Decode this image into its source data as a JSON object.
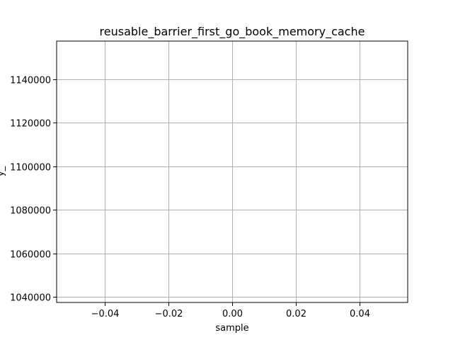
{
  "chart_data": {
    "type": "line",
    "title": "reusable_barrier_first_go_book_memory_cache",
    "xlabel": "sample",
    "ylabel": "y_",
    "xlim": [
      -0.055,
      0.055
    ],
    "ylim": [
      1037500,
      1157500
    ],
    "x_ticks": [
      -0.04,
      -0.02,
      0.0,
      0.02,
      0.04
    ],
    "x_tick_labels": [
      "−0.04",
      "−0.02",
      "0.00",
      "0.02",
      "0.04"
    ],
    "y_ticks": [
      1040000,
      1060000,
      1080000,
      1100000,
      1120000,
      1140000
    ],
    "y_tick_labels": [
      "1040000",
      "1060000",
      "1080000",
      "1100000",
      "1120000",
      "1140000"
    ],
    "grid": true,
    "series": []
  },
  "colors": {
    "grid": "#b0b0b0",
    "frame": "#000000",
    "background": "#ffffff"
  }
}
